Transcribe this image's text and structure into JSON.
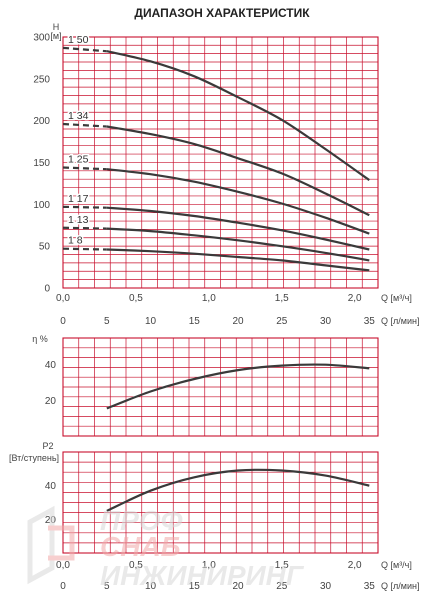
{
  "title": "ДИАПАЗОН ХАРАКТЕРИСТИК",
  "colors": {
    "grid": "#c8102e",
    "curve": "#3a3a3a",
    "background": "#ffffff",
    "watermark": "#d8d8d8",
    "watermark_accent": "#f2a8a8"
  },
  "watermark": {
    "logo_text": "ПРОФ СНАБ ИНЖИНИРИНГ"
  },
  "chart_data": [
    {
      "type": "line",
      "name": "head",
      "ylabel": "H",
      "yunit": "[м]",
      "xlabel_top": "Q [м³/ч]",
      "xlabel_bottom": "Q [л/мин]",
      "xlim": [
        0,
        36
      ],
      "ylim": [
        0,
        300
      ],
      "grid": true,
      "y_ticks": [
        "0",
        "50",
        "100",
        "150",
        "200",
        "250",
        "300"
      ],
      "x_top_ticks": [
        "0,0",
        "0,5",
        "1,0",
        "1,5",
        "2,0"
      ],
      "x_bottom_ticks": [
        "0",
        "5",
        "10",
        "15",
        "20",
        "25",
        "30",
        "35"
      ],
      "series": [
        {
          "name": "1 50",
          "x": [
            0,
            5,
            10,
            15,
            20,
            25,
            30,
            35
          ],
          "y": [
            287,
            283,
            271,
            253,
            228,
            201,
            166,
            129
          ]
        },
        {
          "name": "1 34",
          "x": [
            0,
            5,
            10,
            15,
            20,
            25,
            30,
            35
          ],
          "y": [
            196,
            193,
            184,
            172,
            155,
            137,
            113,
            87
          ]
        },
        {
          "name": "1 25",
          "x": [
            0,
            5,
            10,
            15,
            20,
            25,
            30,
            35
          ],
          "y": [
            144,
            142,
            136,
            127,
            115,
            101,
            84,
            65
          ]
        },
        {
          "name": "1 17",
          "x": [
            0,
            5,
            10,
            15,
            20,
            25,
            30,
            35
          ],
          "y": [
            97,
            96,
            92,
            86,
            78,
            69,
            58,
            46
          ]
        },
        {
          "name": "1 13",
          "x": [
            0,
            5,
            10,
            15,
            20,
            25,
            30,
            35
          ],
          "y": [
            72,
            71,
            68,
            63,
            57,
            50,
            42,
            33
          ]
        },
        {
          "name": "1 8",
          "x": [
            0,
            5,
            10,
            15,
            20,
            25,
            30,
            35
          ],
          "y": [
            47,
            46,
            44,
            41,
            37,
            33,
            27,
            21
          ]
        }
      ]
    },
    {
      "type": "line",
      "name": "efficiency",
      "ylabel": "η %",
      "xlim": [
        0,
        36
      ],
      "ylim": [
        0,
        55
      ],
      "grid": true,
      "y_ticks": [
        "20",
        "40"
      ],
      "series": [
        {
          "x": [
            5,
            10,
            15,
            20,
            25,
            30,
            35
          ],
          "y": [
            15.5,
            25,
            32,
            37,
            39.5,
            40,
            38
          ]
        }
      ]
    },
    {
      "type": "line",
      "name": "power",
      "ylabel": "P2",
      "yunit": "[Вт/ступень]",
      "xlabel_top": "Q [м³/ч]",
      "xlabel_bottom": "Q [л/мин]",
      "xlim": [
        0,
        36
      ],
      "ylim": [
        0,
        60
      ],
      "grid": true,
      "y_ticks": [
        "20",
        "40"
      ],
      "x_top_ticks": [
        "0,0",
        "0,5",
        "1,0",
        "1,5",
        "2,0"
      ],
      "x_bottom_ticks": [
        "0",
        "5",
        "10",
        "15",
        "20",
        "25",
        "30",
        "35"
      ],
      "series": [
        {
          "x": [
            5,
            10,
            15,
            20,
            25,
            30,
            35
          ],
          "y": [
            25,
            37,
            45,
            49,
            49,
            46,
            40
          ]
        }
      ]
    }
  ]
}
